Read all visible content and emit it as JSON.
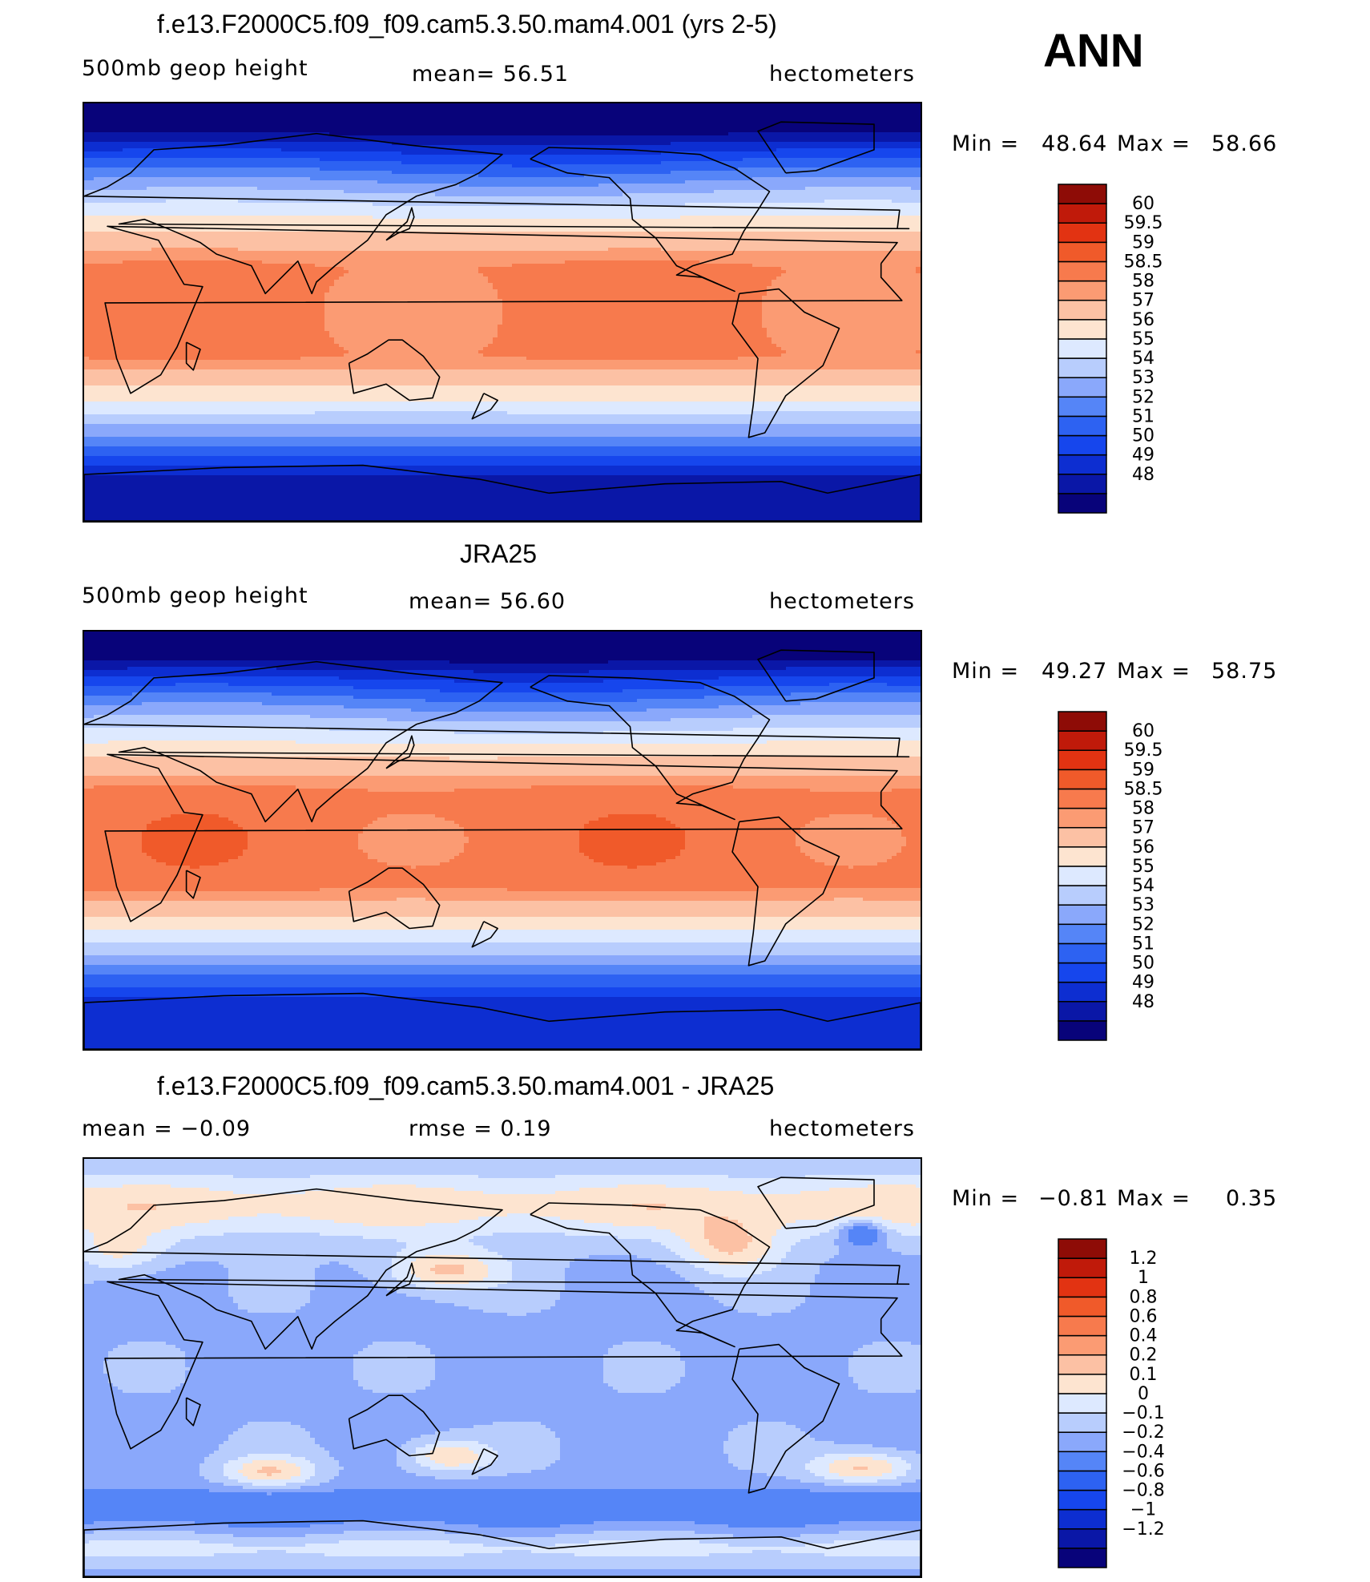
{
  "figure": {
    "season": "ANN"
  },
  "panels": [
    {
      "title": "f.e13.F2000C5.f09_f09.cam5.3.50.mam4.001 (yrs 2-5)",
      "left_label": "500mb  geop  height",
      "center_label": "mean=   56.51",
      "right_label": "hectometers",
      "stats": {
        "min_label": "Min  =",
        "min": "48.64",
        "max_label": "Max  =",
        "max": "58.66"
      },
      "colorbar": {
        "colors": [
          "#08037a",
          "#0a17a7",
          "#0d2ed1",
          "#1646ed",
          "#2d62f2",
          "#5585f7",
          "#8aa8fb",
          "#b8cdfd",
          "#dde9ff",
          "#fde4d0",
          "#fcc1a4",
          "#fb9b73",
          "#f77a4d",
          "#f05a2a",
          "#e23312",
          "#c01a0a",
          "#8e0c06"
        ],
        "labels": [
          "60",
          "59.5",
          "59",
          "58.5",
          "58",
          "57",
          "56",
          "55",
          "54",
          "53",
          "52",
          "51",
          "50",
          "49",
          "48"
        ]
      },
      "field": {
        "type": "model",
        "equator_level": 12,
        "pole_level_north": 5,
        "pole_level_south": 1
      }
    },
    {
      "title": "JRA25",
      "left_label": "500mb  geop  height",
      "center_label": "mean=   56.60",
      "right_label": "hectometers",
      "stats": {
        "min_label": "Min  =",
        "min": "49.27",
        "max_label": "Max  =",
        "max": "58.75"
      },
      "colorbar": {
        "colors": [
          "#08037a",
          "#0a17a7",
          "#0d2ed1",
          "#1646ed",
          "#2d62f2",
          "#5585f7",
          "#8aa8fb",
          "#b8cdfd",
          "#dde9ff",
          "#fde4d0",
          "#fcc1a4",
          "#fb9b73",
          "#f77a4d",
          "#f05a2a",
          "#e23312",
          "#c01a0a",
          "#8e0c06"
        ],
        "labels": [
          "60",
          "59.5",
          "59",
          "58.5",
          "58",
          "57",
          "56",
          "55",
          "54",
          "53",
          "52",
          "51",
          "50",
          "49",
          "48"
        ]
      },
      "field": {
        "type": "obs",
        "equator_level": 13,
        "pole_level_north": 6,
        "pole_level_south": 2
      }
    },
    {
      "title": "f.e13.F2000C5.f09_f09.cam5.3.50.mam4.001 - JRA25",
      "left_label": "mean  =    −0.09",
      "center_label": "rmse  =     0.19",
      "right_label": "hectometers",
      "stats": {
        "min_label": "Min  =",
        "min": "−0.81",
        "max_label": "Max  =",
        "max": "0.35"
      },
      "colorbar": {
        "colors": [
          "#08037a",
          "#0a17a7",
          "#0d2ed1",
          "#1646ed",
          "#2d62f2",
          "#5585f7",
          "#8aa8fb",
          "#b8cdfd",
          "#dde9ff",
          "#fde4d0",
          "#fcc1a4",
          "#fb9b73",
          "#f77a4d",
          "#f05a2a",
          "#e23312",
          "#c01a0a",
          "#8e0c06"
        ],
        "labels": [
          "1.2",
          "1",
          "0.8",
          "0.6",
          "0.4",
          "0.2",
          "0.1",
          "0",
          "−0.1",
          "−0.2",
          "−0.4",
          "−0.6",
          "−0.8",
          "−1",
          "−1.2"
        ]
      },
      "field": {
        "type": "diff"
      }
    }
  ],
  "chart_data": [
    {
      "type": "heatmap",
      "title": "f.e13.F2000C5.f09_f09.cam5.3.50.mam4.001 (yrs 2-5)",
      "variable": "500mb geop height",
      "units": "hectometers",
      "mean": 56.51,
      "min": 48.64,
      "max": 58.66,
      "levels": [
        48,
        49,
        50,
        51,
        52,
        53,
        54,
        55,
        56,
        57,
        58,
        58.5,
        59,
        59.5,
        60
      ]
    },
    {
      "type": "heatmap",
      "title": "JRA25",
      "variable": "500mb geop height",
      "units": "hectometers",
      "mean": 56.6,
      "min": 49.27,
      "max": 58.75,
      "levels": [
        48,
        49,
        50,
        51,
        52,
        53,
        54,
        55,
        56,
        57,
        58,
        58.5,
        59,
        59.5,
        60
      ]
    },
    {
      "type": "heatmap",
      "title": "f.e13.F2000C5.f09_f09.cam5.3.50.mam4.001 - JRA25",
      "units": "hectometers",
      "mean": -0.09,
      "rmse": 0.19,
      "min": -0.81,
      "max": 0.35,
      "levels": [
        -1.2,
        -1,
        -0.8,
        -0.6,
        -0.4,
        -0.2,
        -0.1,
        0,
        0.1,
        0.2,
        0.4,
        0.6,
        0.8,
        1,
        1.2
      ]
    }
  ]
}
